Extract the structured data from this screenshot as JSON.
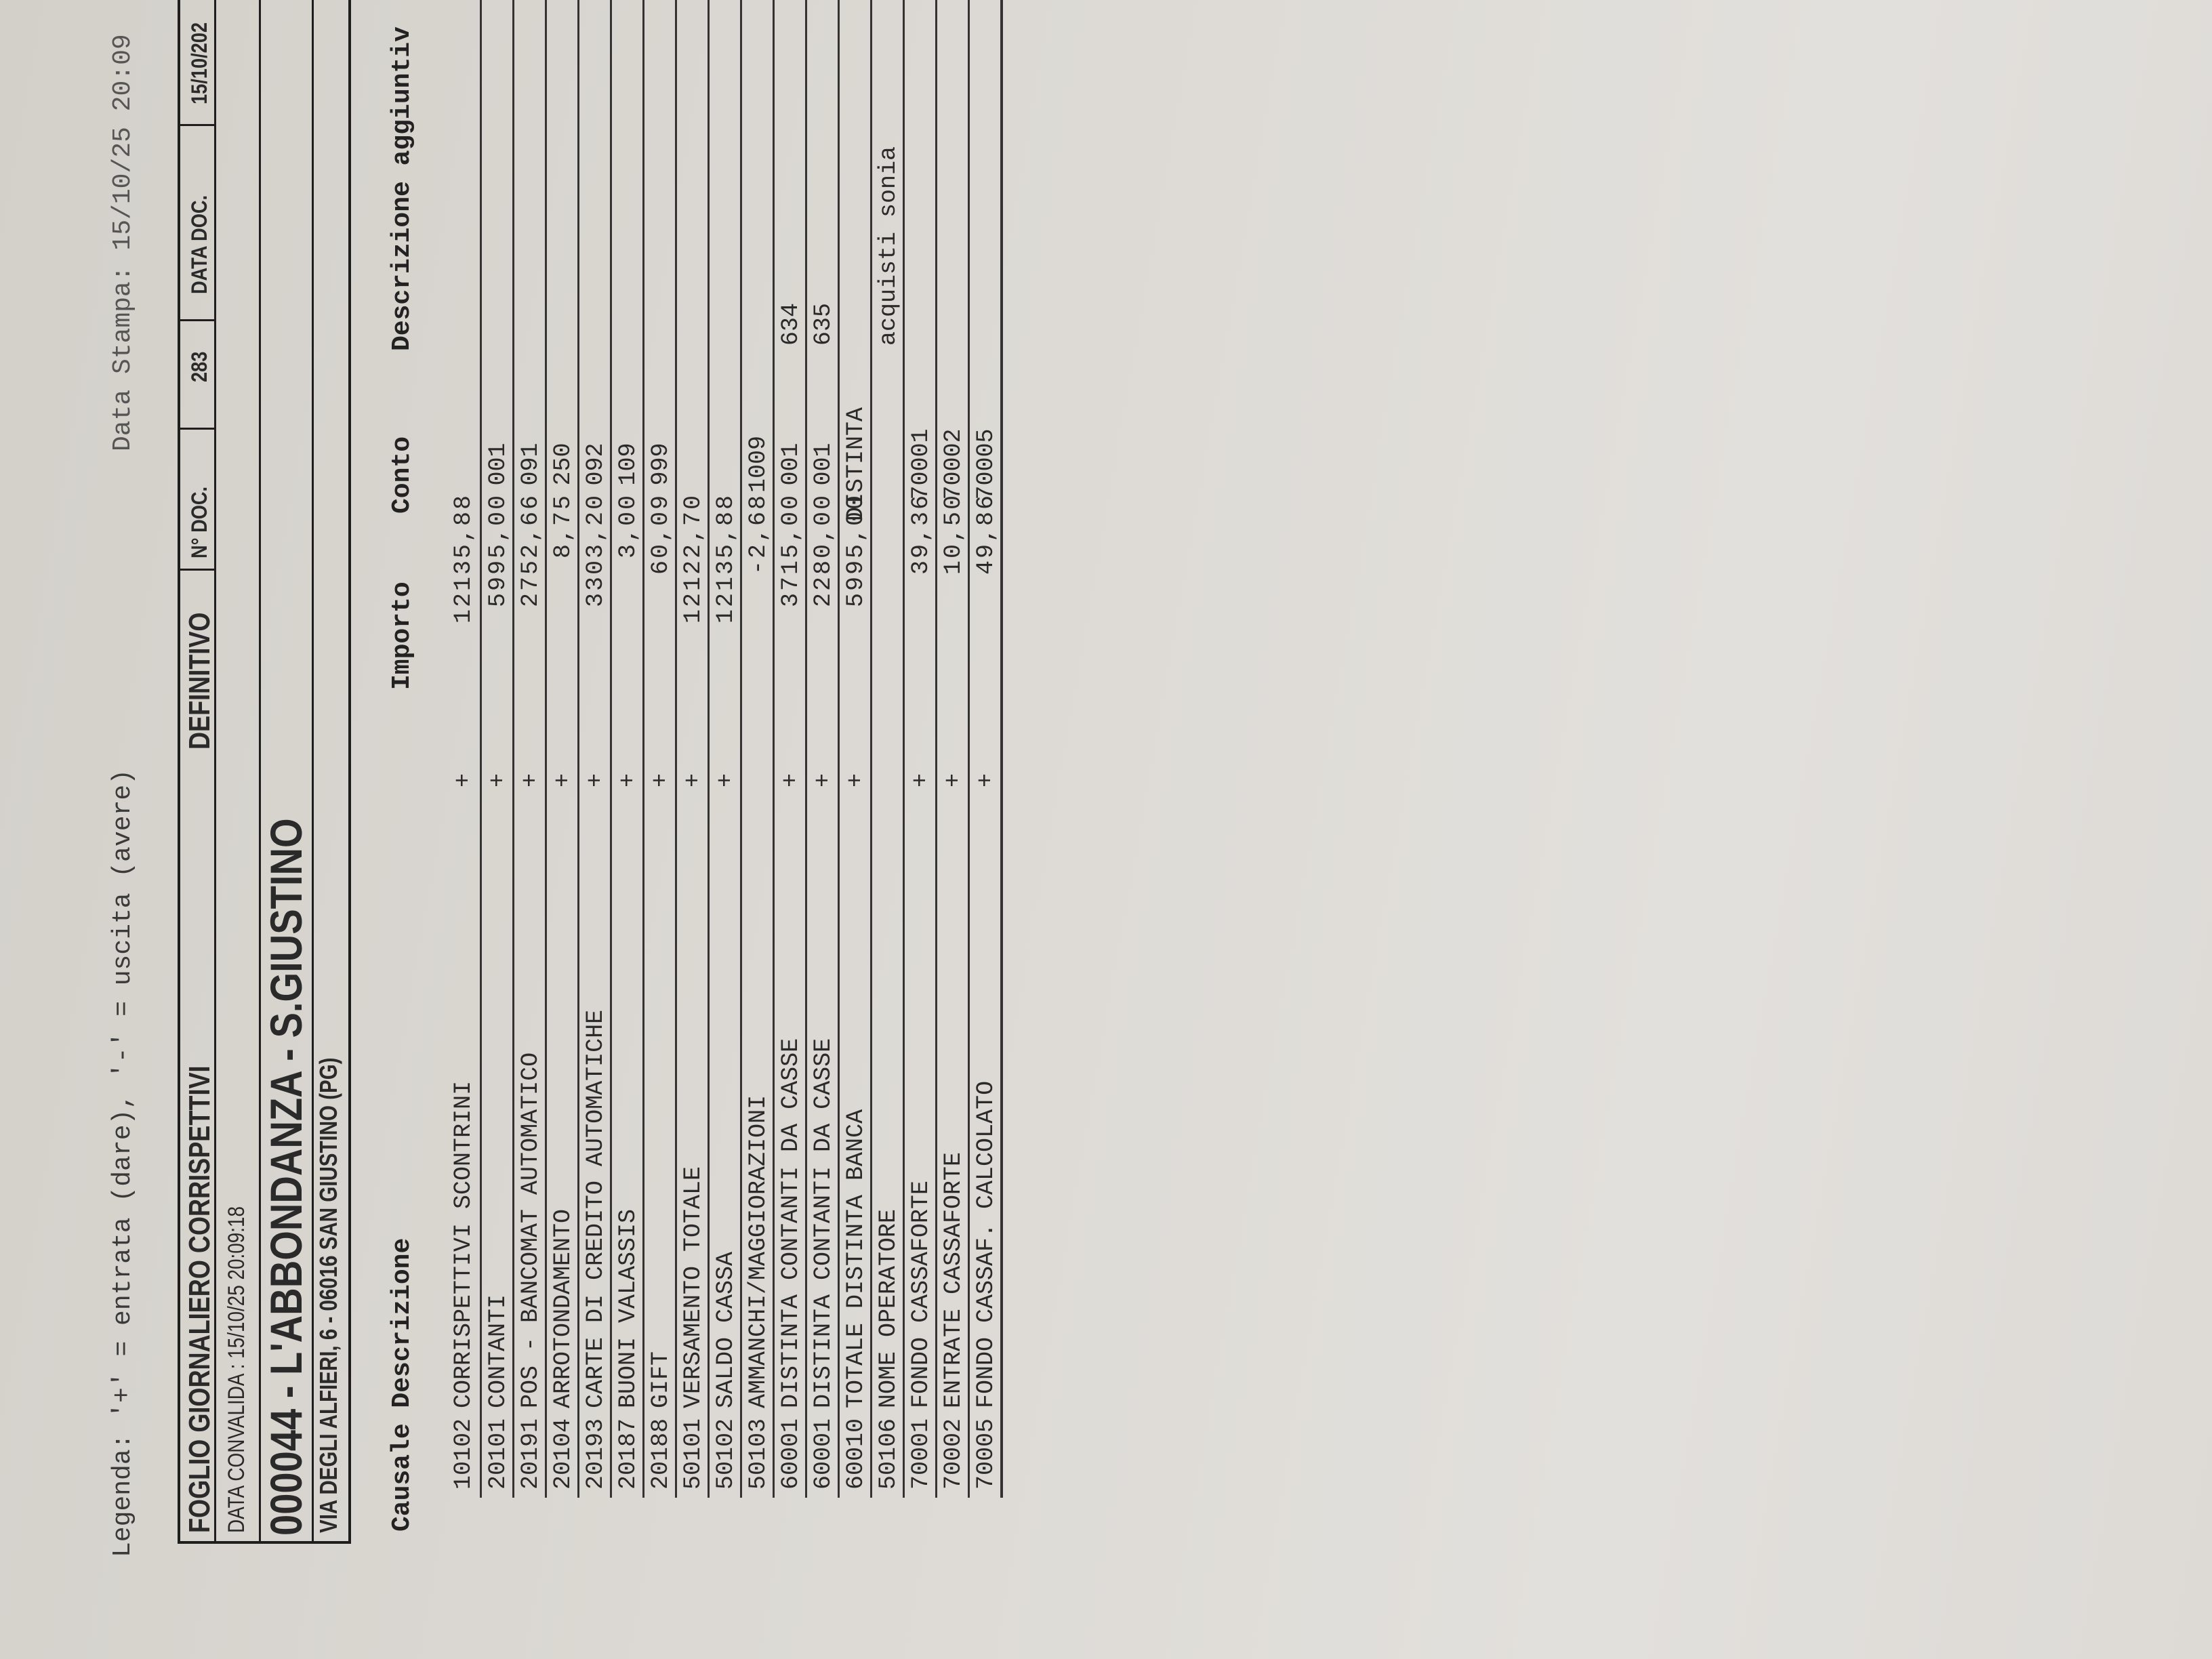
{
  "legend": "Legenda:  '+' = entrata (dare),  '-' = uscita (avere)",
  "print_date": "Data Stampa: 15/10/25 20:09",
  "header": {
    "title": "FOGLIO GIORNALIERO CORRISPETTIVI",
    "status": "DEFINITIVO",
    "doc_no_label": "N° DOC.",
    "doc_no": "283",
    "doc_date_label": "DATA DOC.",
    "doc_date": "15/10/202",
    "validation": "DATA CONVALIDA :  15/10/25 20:09:18",
    "store": "000044 - L'ABBONDANZA - S.GIUSTINO",
    "address": "VIA DEGLI ALFIERI, 6 - 06016 SAN GIUSTINO (PG)"
  },
  "columns": {
    "causale_descrizione": "Causale Descrizione",
    "importo": "Importo",
    "conto": "Conto",
    "descrizione_aggiuntiva": "Descrizione aggiuntiv"
  },
  "rows": [
    {
      "code": "10102",
      "desc": "CORRISPETTIVI  SCONTRINI",
      "sign": "+",
      "amount": "12135,88",
      "conto": "",
      "extra": ""
    },
    {
      "code": "20101",
      "desc": "CONTANTI",
      "sign": "+",
      "amount": "5995,00",
      "conto": "001",
      "extra": ""
    },
    {
      "code": "20191",
      "desc": "POS  -  BANCOMAT  AUTOMATICO",
      "sign": "+",
      "amount": "2752,66",
      "conto": "091",
      "extra": ""
    },
    {
      "code": "20104",
      "desc": "ARROTONDAMENTO",
      "sign": "+",
      "amount": "8,75",
      "conto": "250",
      "extra": ""
    },
    {
      "code": "20193",
      "desc": "CARTE  DI  CREDITO  AUTOMATICHE",
      "sign": "+",
      "amount": "3303,20",
      "conto": "092",
      "extra": ""
    },
    {
      "code": "20187",
      "desc": "BUONI  VALASSIS",
      "sign": "+",
      "amount": "3,00",
      "conto": "109",
      "extra": ""
    },
    {
      "code": "20188",
      "desc": "GIFT",
      "sign": "+",
      "amount": "60,09",
      "conto": "999",
      "extra": ""
    },
    {
      "code": "50101",
      "desc": "VERSAMENTO  TOTALE",
      "sign": "+",
      "amount": "12122,70",
      "conto": "",
      "extra": ""
    },
    {
      "code": "50102",
      "desc": "SALDO  CASSA",
      "sign": "+",
      "amount": "12135,88",
      "conto": "",
      "extra": ""
    },
    {
      "code": "50103",
      "desc": "AMMANCHI/MAGGIORAZIONI",
      "sign": "",
      "amount": "-2,68",
      "conto": "1009",
      "extra": ""
    },
    {
      "code": "60001",
      "desc": "DISTINTA   CONTANTI  DA  CASSE",
      "sign": "+",
      "amount": "3715,00",
      "conto": "001",
      "extra": "634"
    },
    {
      "code": "60001",
      "desc": "DISTINTA   CONTANTI  DA  CASSE",
      "sign": "+",
      "amount": "2280,00",
      "conto": "001",
      "extra": "635"
    },
    {
      "code": "60010",
      "desc": "TOTALE  DISTINTA  BANCA",
      "sign": "+",
      "amount": "5995,00",
      "conto": "DISTINTA",
      "extra": ""
    },
    {
      "code": "50106",
      "desc": "NOME  OPERATORE",
      "sign": "",
      "amount": "",
      "conto": "",
      "extra": "acquisti  sonia"
    },
    {
      "code": "70001",
      "desc": "FONDO  CASSAFORTE",
      "sign": "+",
      "amount": "39,36",
      "conto": "70001",
      "extra": ""
    },
    {
      "code": "70002",
      "desc": "ENTRATE  CASSAFORTE",
      "sign": "+",
      "amount": "10,50",
      "conto": "70002",
      "extra": ""
    },
    {
      "code": "70005",
      "desc": "FONDO  CASSAF.  CALCOLATO",
      "sign": "+",
      "amount": "49,86",
      "conto": "70005",
      "extra": ""
    }
  ]
}
